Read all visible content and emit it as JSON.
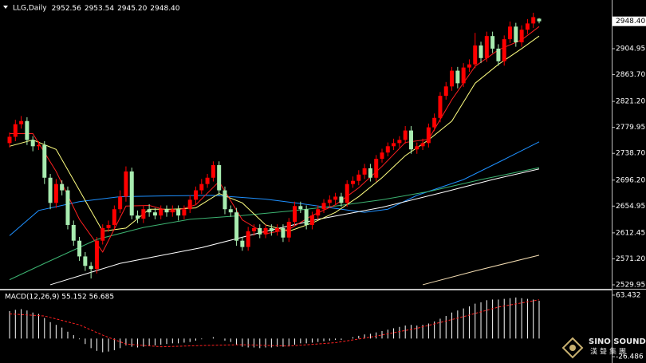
{
  "chart_data": [
    {
      "type": "candlestick",
      "title": "LLG,Daily",
      "ohlc_labels": [
        "2952.56",
        "2953.54",
        "2945.20",
        "2948.40"
      ],
      "up_color": "#ff0000",
      "down_color": "#a8ecb0",
      "open": [
        2755,
        2765,
        2785,
        2790,
        2760,
        2750,
        2752,
        2700,
        2660,
        2690,
        2680,
        2625,
        2600,
        2575,
        2560,
        2555,
        2600,
        2620,
        2625,
        2650,
        2670,
        2710,
        2640,
        2635,
        2650,
        2645,
        2640,
        2650,
        2645,
        2650,
        2640,
        2650,
        2665,
        2680,
        2690,
        2700,
        2720,
        2680,
        2650,
        2645,
        2600,
        2590,
        2615,
        2620,
        2610,
        2620,
        2615,
        2620,
        2605,
        2630,
        2655,
        2650,
        2625,
        2640,
        2650,
        2660,
        2665,
        2670,
        2660,
        2690,
        2695,
        2705,
        2715,
        2700,
        2730,
        2740,
        2750,
        2755,
        2760,
        2775,
        2745,
        2750,
        2755,
        2780,
        2795,
        2830,
        2845,
        2870,
        2850,
        2875,
        2880,
        2910,
        2890,
        2925,
        2905,
        2885,
        2920,
        2940,
        2915,
        2935,
        2945,
        2952.56
      ],
      "high": [
        2772,
        2792,
        2798,
        2796,
        2766,
        2758,
        2758,
        2706,
        2698,
        2696,
        2686,
        2632,
        2606,
        2582,
        2566,
        2606,
        2626,
        2632,
        2656,
        2680,
        2718,
        2716,
        2648,
        2656,
        2658,
        2652,
        2656,
        2656,
        2656,
        2656,
        2656,
        2672,
        2686,
        2698,
        2706,
        2726,
        2726,
        2686,
        2656,
        2652,
        2606,
        2622,
        2626,
        2626,
        2626,
        2626,
        2626,
        2626,
        2636,
        2662,
        2662,
        2656,
        2646,
        2656,
        2666,
        2672,
        2676,
        2676,
        2696,
        2702,
        2712,
        2722,
        2722,
        2736,
        2746,
        2756,
        2762,
        2766,
        2782,
        2782,
        2756,
        2762,
        2786,
        2802,
        2836,
        2852,
        2876,
        2876,
        2882,
        2888,
        2930,
        2916,
        2932,
        2932,
        2912,
        2926,
        2948,
        2946,
        2942,
        2952,
        2962,
        2953.54
      ],
      "low": [
        2748,
        2758,
        2778,
        2752,
        2742,
        2744,
        2690,
        2650,
        2652,
        2672,
        2618,
        2592,
        2568,
        2552,
        2540,
        2548,
        2594,
        2614,
        2618,
        2644,
        2662,
        2634,
        2628,
        2628,
        2638,
        2634,
        2634,
        2638,
        2638,
        2632,
        2634,
        2644,
        2658,
        2674,
        2684,
        2694,
        2672,
        2642,
        2638,
        2592,
        2584,
        2584,
        2608,
        2604,
        2604,
        2608,
        2608,
        2598,
        2598,
        2624,
        2644,
        2618,
        2618,
        2634,
        2644,
        2654,
        2658,
        2654,
        2654,
        2684,
        2688,
        2698,
        2694,
        2694,
        2724,
        2734,
        2744,
        2748,
        2754,
        2738,
        2738,
        2744,
        2748,
        2774,
        2788,
        2824,
        2838,
        2842,
        2844,
        2868,
        2874,
        2882,
        2884,
        2898,
        2878,
        2878,
        2914,
        2908,
        2908,
        2928,
        2938,
        2945.2
      ],
      "close": [
        2765,
        2785,
        2790,
        2760,
        2750,
        2752,
        2700,
        2660,
        2690,
        2680,
        2625,
        2600,
        2575,
        2560,
        2555,
        2600,
        2620,
        2625,
        2650,
        2670,
        2710,
        2640,
        2635,
        2650,
        2645,
        2640,
        2650,
        2645,
        2650,
        2640,
        2650,
        2665,
        2680,
        2690,
        2700,
        2720,
        2680,
        2650,
        2645,
        2600,
        2590,
        2615,
        2620,
        2610,
        2620,
        2615,
        2620,
        2605,
        2630,
        2655,
        2650,
        2625,
        2640,
        2650,
        2660,
        2665,
        2670,
        2660,
        2690,
        2695,
        2705,
        2715,
        2700,
        2730,
        2740,
        2750,
        2755,
        2760,
        2775,
        2745,
        2750,
        2755,
        2780,
        2795,
        2830,
        2845,
        2870,
        2850,
        2875,
        2880,
        2910,
        2890,
        2925,
        2905,
        2885,
        2920,
        2940,
        2915,
        2935,
        2945,
        2955,
        2948.4
      ],
      "series": [
        {
          "color": "#1e90ff",
          "x": [
            0,
            5,
            12,
            19,
            26,
            35,
            44,
            50,
            57,
            61,
            65,
            70,
            78,
            85,
            91
          ],
          "values": [
            2608,
            2648,
            2662,
            2670,
            2671,
            2672,
            2666,
            2659,
            2650,
            2645,
            2650,
            2672,
            2697,
            2729,
            2757
          ]
        },
        {
          "color": "#3cb371",
          "x": [
            0,
            6,
            15,
            23,
            31,
            40,
            48,
            56,
            64,
            72,
            81,
            91
          ],
          "values": [
            2538,
            2564,
            2602,
            2621,
            2634,
            2640,
            2647,
            2655,
            2665,
            2678,
            2697,
            2716
          ]
        },
        {
          "color": "#ffffff",
          "x": [
            7,
            19,
            33,
            44,
            53,
            64,
            75,
            83,
            91
          ],
          "values": [
            2530,
            2564,
            2589,
            2615,
            2634,
            2653,
            2678,
            2697,
            2714
          ]
        },
        {
          "color": "#f5deb3",
          "x": [
            71,
            80,
            91
          ],
          "values": [
            2530,
            2552,
            2577
          ]
        },
        {
          "color": "#ffff80",
          "x": [
            0,
            4,
            8,
            12,
            16,
            20,
            24,
            28,
            32,
            36,
            40,
            44,
            48,
            52,
            56,
            60,
            64,
            68,
            72,
            76,
            80,
            84,
            88,
            91
          ],
          "values": [
            2750,
            2760,
            2745,
            2680,
            2615,
            2620,
            2650,
            2650,
            2652,
            2675,
            2660,
            2625,
            2615,
            2628,
            2645,
            2670,
            2700,
            2735,
            2760,
            2790,
            2850,
            2880,
            2905,
            2925
          ]
        },
        {
          "color": "#ff2020",
          "x": [
            0,
            4,
            8,
            12,
            16,
            20,
            24,
            28,
            32,
            36,
            40,
            44,
            48,
            52,
            56,
            60,
            64,
            68,
            72,
            76,
            80,
            84,
            88,
            91
          ],
          "values": [
            2770,
            2770,
            2710,
            2634,
            2582,
            2655,
            2656,
            2646,
            2657,
            2694,
            2633,
            2611,
            2618,
            2640,
            2657,
            2684,
            2718,
            2756,
            2761,
            2824,
            2877,
            2903,
            2919,
            2940
          ]
        }
      ],
      "ylim": [
        2523.6,
        2979.7
      ],
      "yticks": [
        2904.95,
        {
          "value": 2863.7,
          "label": "2863.70"
        },
        {
          "value": 2821.2,
          "label": "2821.20"
        },
        2779.95,
        {
          "value": 2738.7,
          "label": "2738.70"
        },
        {
          "value": 2696.2,
          "label": "2696.20"
        },
        2654.95,
        2612.45,
        {
          "value": 2571.2,
          "label": "2571.20"
        },
        2529.95
      ],
      "price_label": {
        "value": 2948.4,
        "label": "2948.40"
      },
      "grid": false
    },
    {
      "type": "macd",
      "title": "MACD(12,26,9) 55.152 56.685",
      "color": "#ffffff",
      "values": [
        40,
        42,
        43,
        41,
        38,
        36,
        30,
        24,
        20,
        16,
        10,
        5,
        -1,
        -8,
        -14,
        -18,
        -20,
        -19,
        -17,
        -14,
        -10,
        -12,
        -13,
        -12,
        -11,
        -10,
        -9,
        -8,
        -7,
        -7,
        -6,
        -5,
        -3,
        -1,
        0,
        2,
        0,
        -3,
        -5,
        -9,
        -12,
        -13,
        -13,
        -14,
        -13,
        -13,
        -12,
        -12,
        -11,
        -9,
        -7,
        -7,
        -6,
        -5,
        -4,
        -3,
        -2,
        -2,
        0,
        2,
        4,
        6,
        7,
        9,
        11,
        13,
        15,
        17,
        19,
        20,
        19,
        20,
        22,
        25,
        29,
        33,
        38,
        41,
        44,
        47,
        51,
        53,
        56,
        57,
        57,
        58,
        59,
        60,
        59,
        58,
        57,
        55.152
      ],
      "signal": {
        "color": "#ff2020",
        "x": [
          0,
          6,
          12,
          16,
          20,
          26,
          34,
          40,
          48,
          56,
          62,
          70,
          78,
          84,
          91
        ],
        "values": [
          36,
          33,
          20,
          5,
          -8,
          -12,
          -10,
          -9,
          -11,
          -6,
          2,
          15,
          32,
          46,
          56.685
        ]
      },
      "ylim": [
        -33.4,
        70.35
      ],
      "yticks": [
        63.432,
        -26.486
      ],
      "grid": false
    }
  ],
  "watermark": {
    "title": "SINO SOUND",
    "subtitle": "漢聲集團"
  }
}
